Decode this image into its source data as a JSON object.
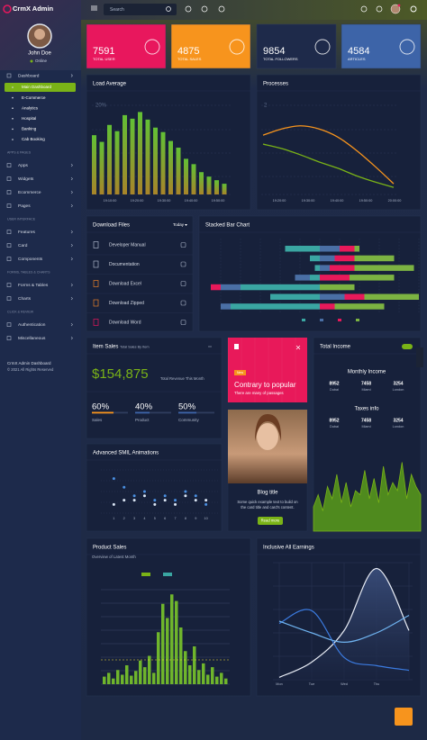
{
  "sidebar": {
    "brand": "CrmX Admin",
    "user": "John Doe",
    "status": "Online",
    "nav": [
      {
        "label": "Dashboard",
        "sub": [
          "Main Dashboard",
          "E-Commerce",
          "Analytics",
          "Hospital",
          "Banking",
          "Cab Booking"
        ]
      },
      {
        "section": "APPS & PAGES",
        "items": [
          "Apps",
          "Widgets",
          "Ecommerce",
          "Pages"
        ]
      },
      {
        "section": "USER INTERFACE",
        "items": [
          "Features",
          "Card",
          "Components"
        ]
      },
      {
        "section": "FORMS, TABLES & CHARTS",
        "items": [
          "Forms & Tables",
          "Charts"
        ]
      },
      {
        "section": "CLICK & REVIEW",
        "items": [
          "Authentication",
          "Miscellaneous"
        ]
      }
    ],
    "footer": [
      "CrmX Admin Dashboard",
      "© 2021 All Rights Reserved"
    ]
  },
  "header": {
    "search": "Search"
  },
  "stats": [
    {
      "value": 7591,
      "label": "TOTAL USER",
      "color": "#e8175d"
    },
    {
      "value": 4875,
      "label": "TOTAL SALES",
      "color": "#f7941d"
    },
    {
      "value": 9854,
      "label": "TOTAL FOLLOWERS",
      "color": "#1e2a4a"
    },
    {
      "value": 4584,
      "label": "ARTICLES",
      "color": "#3d64a8"
    }
  ],
  "load_average": {
    "title": "Load Average",
    "ylabel": "20%",
    "ylim": [
      0,
      20
    ],
    "values": [
      13.3,
      11.8,
      15.6,
      14.2,
      17.8,
      17,
      18.5,
      16.8,
      15,
      14,
      12,
      10.5,
      8,
      6.8,
      5,
      4,
      3.2,
      2.4
    ],
    "xticks": [
      "19:10:00",
      "19:20:00",
      "19:30:00",
      "19:40:00",
      "19:50:00"
    ]
  },
  "processes": {
    "title": "Processes",
    "ylabel": "2",
    "ylim": [
      0,
      2
    ],
    "xticks": [
      "19:20:00",
      "19:30:00",
      "19:40:00",
      "19:50:00",
      "20:00:00"
    ],
    "series": [
      {
        "color": "#f7941d",
        "values": [
          1.33,
          1.47,
          1.54,
          1.47,
          1.29,
          0.99,
          0.63,
          0.24
        ]
      },
      {
        "color": "#7ab317",
        "values": [
          1.13,
          1.03,
          0.89,
          0.73,
          0.59,
          0.42,
          0.28,
          0.16
        ]
      }
    ]
  },
  "downloads": {
    "title": "Download Files",
    "filter": "Today",
    "items": [
      "Developer Manual",
      "Documentation",
      "Download Excel",
      "Download Zipped",
      "Download Word"
    ]
  },
  "stacked": {
    "title": "Stacked Bar Chart",
    "xlim": [
      -100,
      100
    ],
    "series": [
      {
        "color": "#3aa6a2",
        "values": [
          -35,
          -10,
          -5,
          -10,
          -80,
          -50,
          -90
        ]
      },
      {
        "color": "#4a6fa5",
        "values": [
          20,
          15,
          10,
          -15,
          -20,
          25,
          -10
        ]
      },
      {
        "color": "#e8195a",
        "values": [
          15,
          20,
          25,
          30,
          -10,
          20,
          15
        ]
      },
      {
        "color": "#7cb342",
        "values": [
          5,
          40,
          60,
          45,
          35,
          55,
          50
        ]
      }
    ]
  },
  "item_sales": {
    "title": "Item Sales",
    "subtitle": "Total Sales By Item",
    "total": "$154,875",
    "total_label": "Total Revenue This Month",
    "metrics": [
      {
        "value": 60,
        "label": "60%",
        "name": "Sales",
        "color": "#f7941d"
      },
      {
        "value": 40,
        "label": "40%",
        "name": "Product",
        "color": "#3d64a8"
      },
      {
        "value": 50,
        "label": "50%",
        "name": "Community",
        "color": "#3d64a8"
      }
    ]
  },
  "promo": {
    "badge": "New",
    "title": "Contrary to popular",
    "text": "There are many of passages"
  },
  "blog": {
    "title": "Blog title",
    "text": [
      "Some quick example text to build on",
      "the card title and card's content."
    ],
    "button": "Read more"
  },
  "total_income": {
    "title": "Total Income",
    "groups": [
      {
        "title": "Monthly Income",
        "cells": [
          {
            "value": 8952,
            "city": "Dubai"
          },
          {
            "value": 7458,
            "city": "Miami"
          },
          {
            "value": 3254,
            "city": "London"
          }
        ]
      },
      {
        "title": "Taxes info",
        "cells": [
          {
            "value": 8952,
            "city": "Dubai"
          },
          {
            "value": 7458,
            "city": "Miami"
          },
          {
            "value": 3254,
            "city": "London"
          }
        ]
      }
    ],
    "ylim": [
      0,
      100
    ],
    "values": [
      30,
      45,
      25,
      55,
      40,
      70,
      35,
      60,
      30,
      50,
      45,
      75,
      40,
      65,
      35,
      80,
      45,
      60,
      50,
      85,
      40,
      70,
      55,
      45
    ]
  },
  "smil": {
    "title": "Advanced SMIL Animations",
    "xlim": [
      0,
      11
    ],
    "ylim": [
      0,
      10
    ],
    "x": [
      1,
      2,
      3,
      4,
      5,
      6,
      7,
      8,
      9,
      10
    ],
    "series": [
      {
        "color": "#4a90e2",
        "values": [
          8,
          6,
          4,
          5,
          3,
          4,
          3,
          5,
          4,
          2
        ]
      },
      {
        "color": "#dbe6f5",
        "values": [
          2,
          3,
          3,
          4,
          2,
          3,
          2,
          4,
          3,
          3
        ]
      }
    ]
  },
  "product_sales": {
    "title": "Product Sales",
    "subtitle": "Overview of Latest Month",
    "ylim": [
      0,
      100
    ],
    "values": [
      8,
      12,
      6,
      15,
      10,
      20,
      9,
      14,
      25,
      18,
      30,
      12,
      55,
      85,
      70,
      95,
      88,
      60,
      35,
      20,
      40,
      15,
      22,
      10,
      18,
      8,
      12,
      6
    ]
  },
  "earnings": {
    "title": "Inclusive All Earnings",
    "categories": [
      "Mon",
      "Tue",
      "Wed",
      "Thu",
      null
    ],
    "ylim": [
      0,
      100
    ],
    "series": [
      {
        "color": "#e8ecf5",
        "values": [
          2,
          15,
          42,
          95,
          42
        ]
      },
      {
        "color": "#3b7be0",
        "values": [
          48,
          59,
          19,
          12,
          8
        ]
      },
      {
        "color": "#6fb3f0",
        "values": [
          50,
          40,
          32,
          40,
          55
        ]
      }
    ]
  }
}
